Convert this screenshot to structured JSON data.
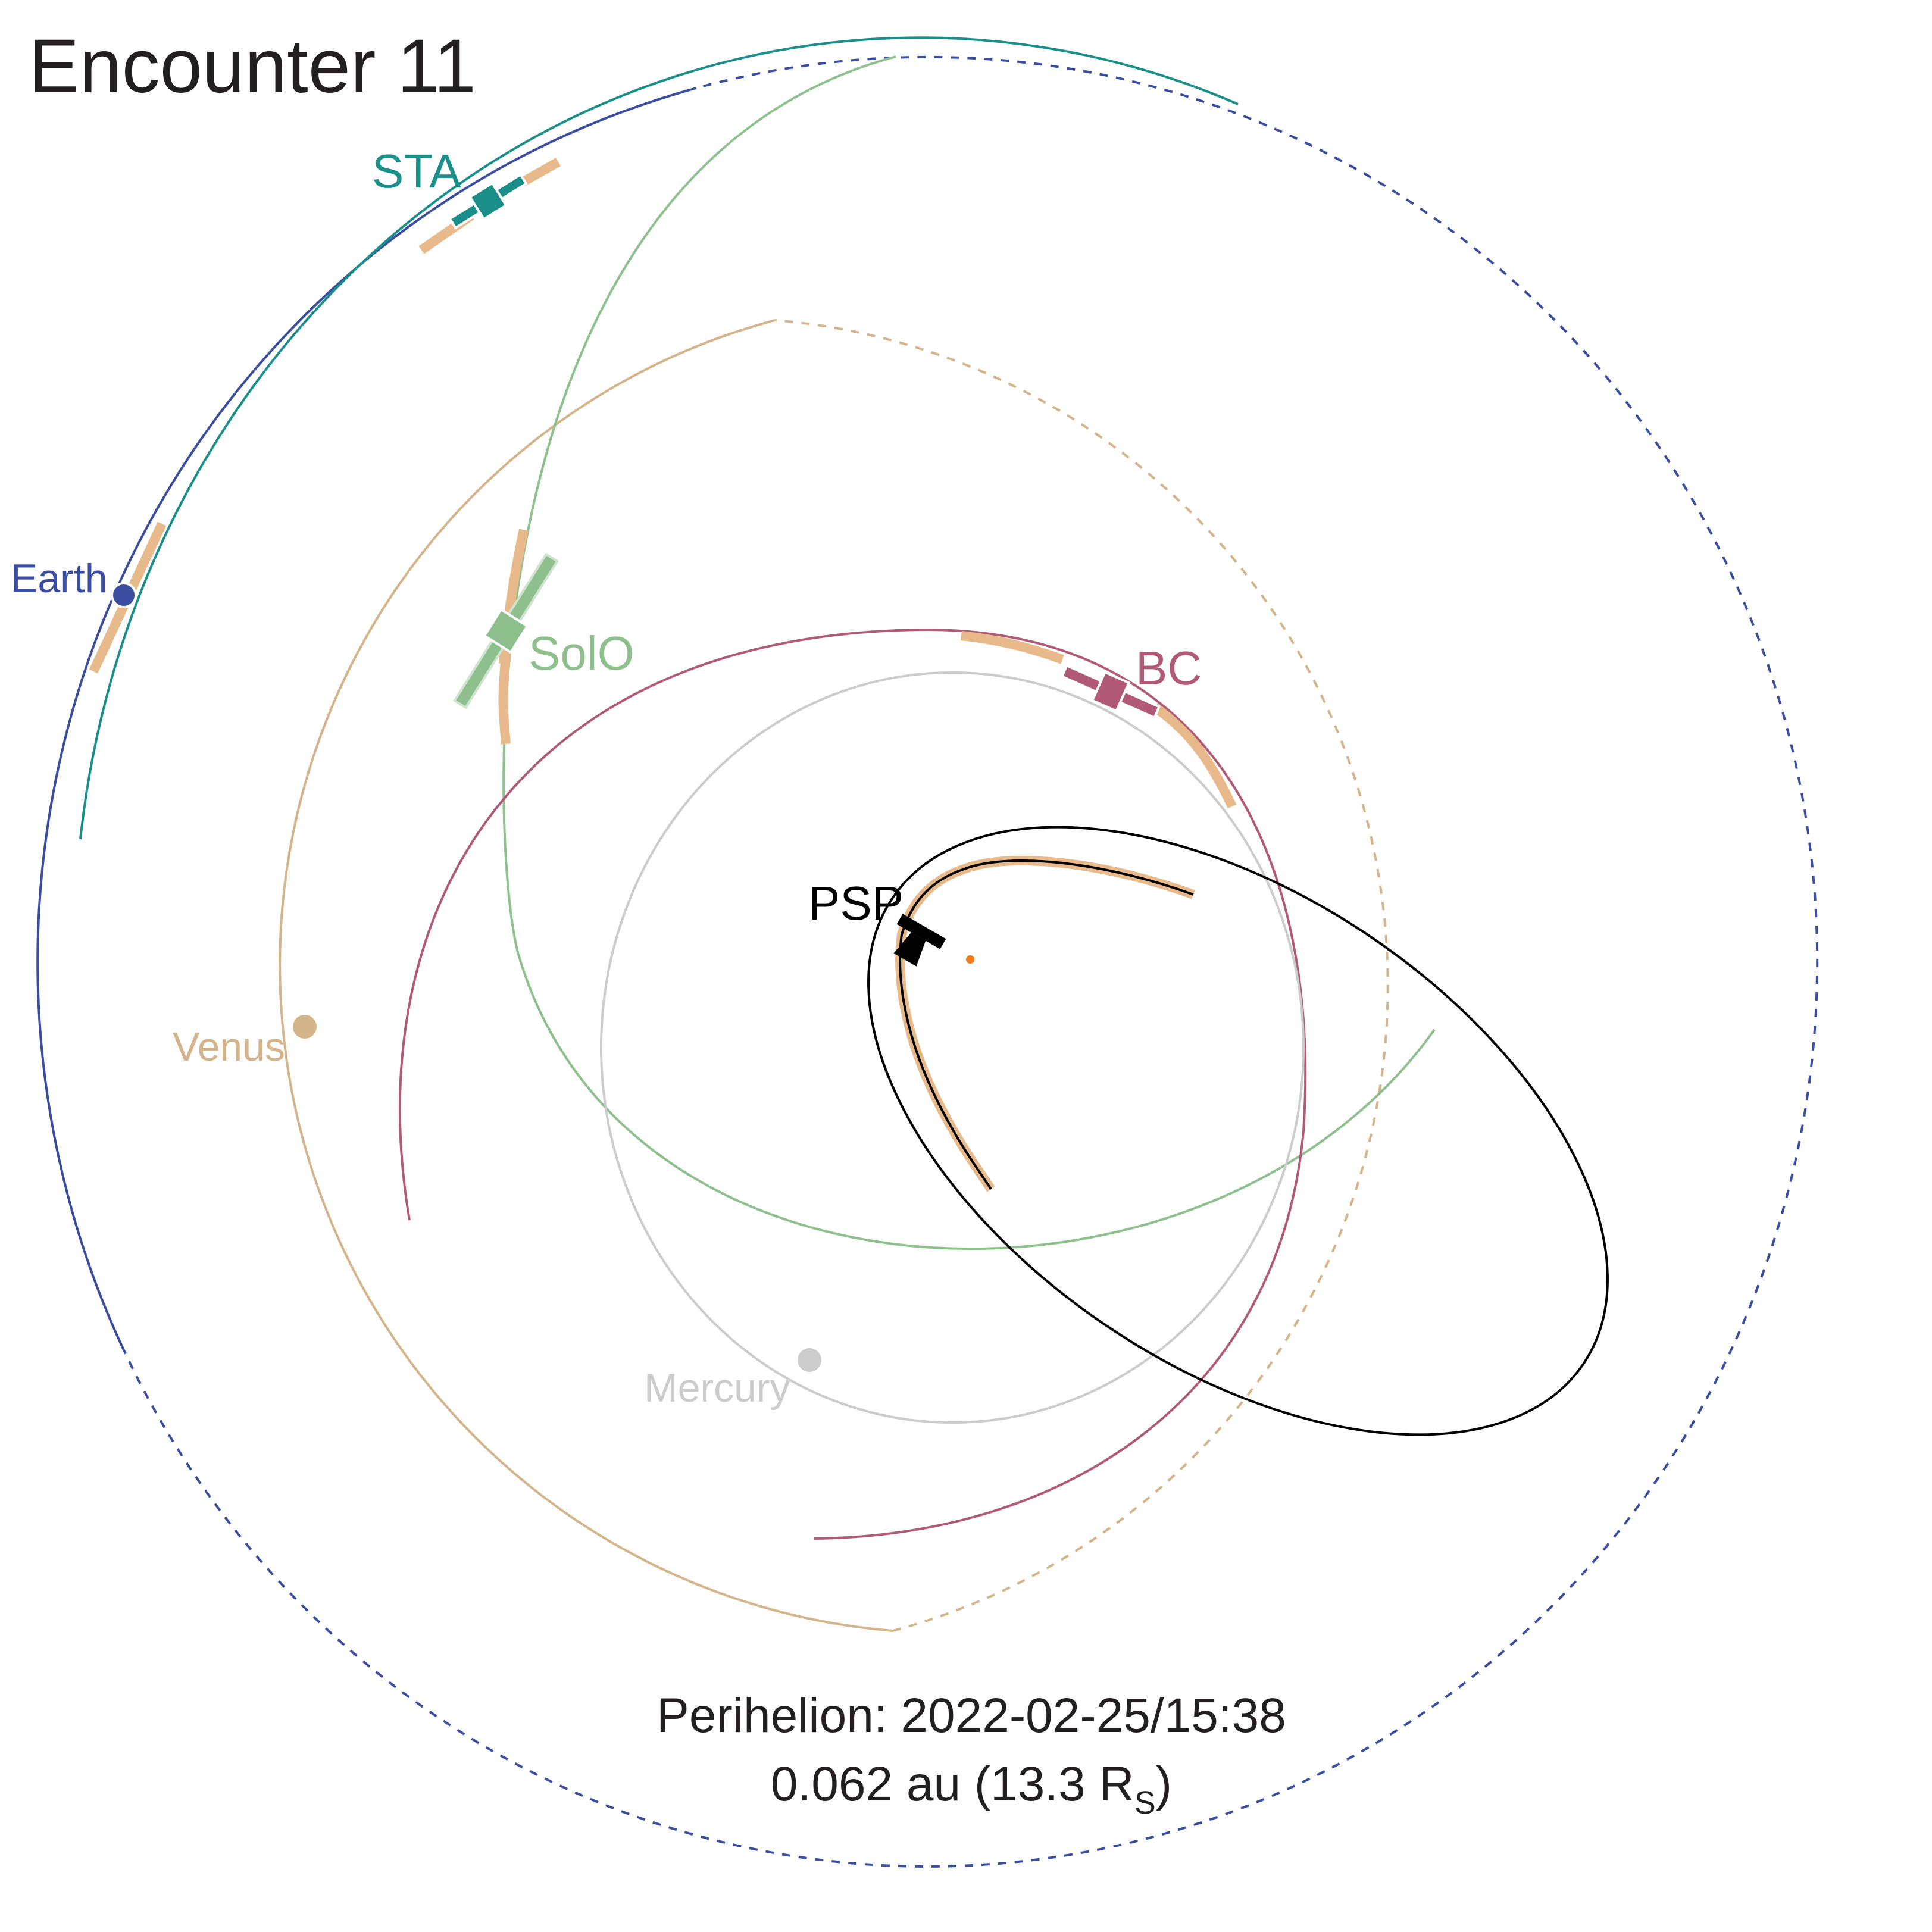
{
  "title": "Encounter 11",
  "footer": {
    "line1": "Perihelion: 2022-02-25/15:38",
    "line2_prefix": "0.062 au (13.3 R",
    "line2_sub": "S",
    "line2_suffix": ")"
  },
  "labels": {
    "sta": "STA",
    "earth": "Earth",
    "solo": "SolO",
    "bc": "BC",
    "psp": "PSP",
    "venus": "Venus",
    "mercury": "Mercury"
  },
  "colors": {
    "earth": "#3b4da0",
    "sta": "#1a8f8a",
    "solo": "#8ec08e",
    "bc": "#b05a78",
    "venus": "#d4b48a",
    "mercury": "#cccccc",
    "psp": "#000000",
    "encounter_highlight": "#e8b98a",
    "sun": "#f07d1a",
    "title": "#231f20"
  },
  "icons": {
    "sta": "spacecraft-icon",
    "solo": "spacecraft-icon",
    "bc": "spacecraft-icon",
    "psp": "spacecraft-icon",
    "sun": "sun-dot"
  }
}
